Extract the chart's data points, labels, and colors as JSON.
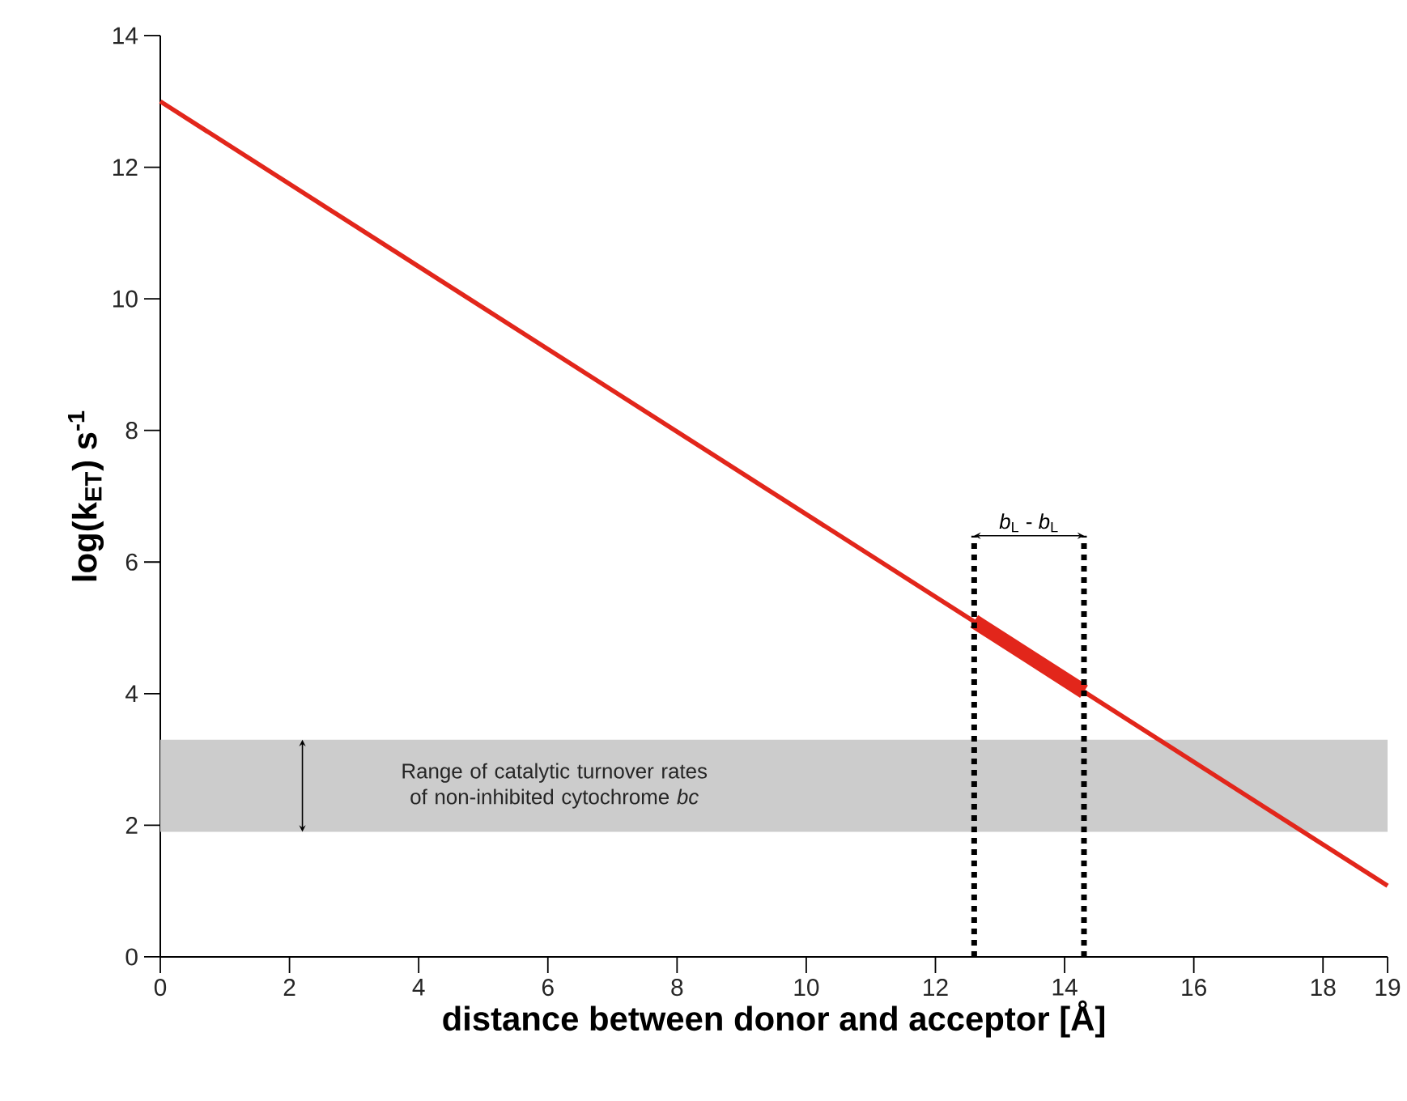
{
  "chart_data": {
    "type": "line",
    "xlabel": "distance between donor and acceptor [Å]",
    "ylabel": "log(k$_{ET}$) s$^{-1}$",
    "x": [
      0,
      19
    ],
    "series": [
      {
        "color": "#e2261b",
        "values": [
          13,
          1.08
        ]
      },
      {
        "color": "#e2261b",
        "x": [
          12.6,
          14.3
        ],
        "values": [
          5.1,
          4.03
        ]
      }
    ],
    "xlim": [
      0,
      19
    ],
    "ylim": [
      0,
      14
    ],
    "xticks": [
      0,
      2,
      4,
      6,
      8,
      10,
      12,
      14,
      16,
      18,
      19
    ],
    "yticks": [
      0,
      2,
      4,
      6,
      8,
      10,
      12,
      14
    ],
    "grid": false,
    "marker": "none",
    "line_style": "solid",
    "ref_lines": [
      {
        "axis": "x",
        "value": 12.6,
        "line_style": "dotted",
        "color": "#000000"
      },
      {
        "axis": "x",
        "value": 14.3,
        "line_style": "dotted",
        "color": "#000000"
      }
    ],
    "bands": [
      {
        "axis": "y",
        "from": 1.9,
        "to": 3.3,
        "color": "#cccccc",
        "label": "Range of catalytic turnover rates of non-inhibited cytochrome *bc*"
      }
    ],
    "annotations": [
      {
        "text": "*b*$_{L}$ - *b*$_{L}$",
        "x": 14.3,
        "y": 6.4
      }
    ]
  }
}
